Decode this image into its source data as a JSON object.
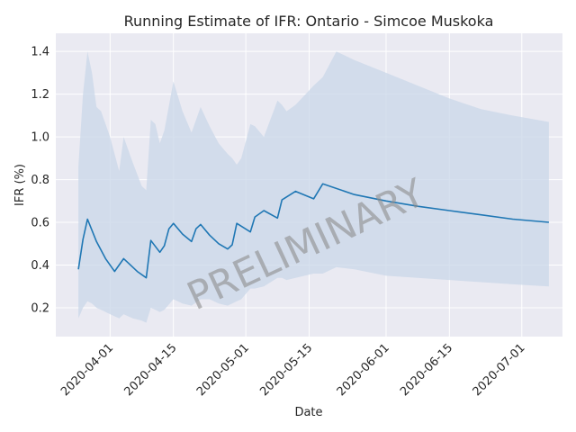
{
  "chart_data": {
    "type": "line",
    "title": "Running Estimate of IFR: Ontario - Simcoe Muskoka",
    "xlabel": "Date",
    "ylabel": "IFR (%)",
    "watermark": "PRELIMINARY",
    "grid": true,
    "x_is_date": true,
    "xlim": [
      "2020-03-20",
      "2020-07-10"
    ],
    "ylim": [
      0.065,
      1.485
    ],
    "xticks": [
      "2020-04-01",
      "2020-04-15",
      "2020-05-01",
      "2020-05-15",
      "2020-06-01",
      "2020-06-15",
      "2020-07-01"
    ],
    "yticks": [
      0.2,
      0.4,
      0.6,
      0.8,
      1.0,
      1.2,
      1.4
    ],
    "ytick_labels": [
      "0.2",
      "0.4",
      "0.6",
      "0.8",
      "1.0",
      "1.2",
      "1.4"
    ],
    "colors": {
      "line": "#1f77b4",
      "band": "#c9d7e8",
      "background": "#eaeaf2",
      "grid": "#ffffff",
      "watermark": "#8c8c8c"
    },
    "series": [
      {
        "x": [
          "2020-03-25",
          "2020-03-26",
          "2020-03-27",
          "2020-03-29",
          "2020-03-31",
          "2020-04-02",
          "2020-04-04",
          "2020-04-05",
          "2020-04-07",
          "2020-04-09",
          "2020-04-10",
          "2020-04-12",
          "2020-04-13",
          "2020-04-14",
          "2020-04-15",
          "2020-04-17",
          "2020-04-19",
          "2020-04-20",
          "2020-04-21",
          "2020-04-23",
          "2020-04-25",
          "2020-04-27",
          "2020-04-28",
          "2020-04-29",
          "2020-05-02",
          "2020-05-03",
          "2020-05-05",
          "2020-05-08",
          "2020-05-09",
          "2020-05-12",
          "2020-05-16",
          "2020-05-18",
          "2020-05-25",
          "2020-06-01",
          "2020-06-08",
          "2020-06-15",
          "2020-06-22",
          "2020-06-29",
          "2020-07-07"
        ],
        "y": [
          0.38,
          0.52,
          0.615,
          0.51,
          0.43,
          0.37,
          0.43,
          0.41,
          0.37,
          0.34,
          0.515,
          0.46,
          0.49,
          0.57,
          0.595,
          0.545,
          0.51,
          0.57,
          0.59,
          0.54,
          0.5,
          0.475,
          0.495,
          0.595,
          0.555,
          0.625,
          0.655,
          0.62,
          0.705,
          0.745,
          0.71,
          0.78,
          0.73,
          0.7,
          0.675,
          0.655,
          0.635,
          0.615,
          0.6
        ]
      }
    ],
    "band": {
      "x": [
        "2020-03-25",
        "2020-03-26",
        "2020-03-27",
        "2020-03-28",
        "2020-03-29",
        "2020-03-30",
        "2020-04-01",
        "2020-04-03",
        "2020-04-04",
        "2020-04-06",
        "2020-04-08",
        "2020-04-09",
        "2020-04-10",
        "2020-04-11",
        "2020-04-12",
        "2020-04-13",
        "2020-04-15",
        "2020-04-17",
        "2020-04-19",
        "2020-04-21",
        "2020-04-23",
        "2020-04-25",
        "2020-04-27",
        "2020-04-28",
        "2020-04-29",
        "2020-04-30",
        "2020-05-02",
        "2020-05-03",
        "2020-05-05",
        "2020-05-08",
        "2020-05-09",
        "2020-05-10",
        "2020-05-12",
        "2020-05-16",
        "2020-05-18",
        "2020-05-21",
        "2020-05-25",
        "2020-06-01",
        "2020-06-08",
        "2020-06-15",
        "2020-06-22",
        "2020-06-29",
        "2020-07-07"
      ],
      "upper": [
        0.86,
        1.2,
        1.4,
        1.3,
        1.14,
        1.12,
        1.0,
        0.84,
        1.0,
        0.88,
        0.77,
        0.75,
        1.08,
        1.06,
        0.97,
        1.03,
        1.26,
        1.12,
        1.02,
        1.14,
        1.05,
        0.97,
        0.92,
        0.9,
        0.87,
        0.9,
        1.06,
        1.05,
        1.0,
        1.17,
        1.15,
        1.12,
        1.15,
        1.24,
        1.28,
        1.4,
        1.36,
        1.3,
        1.24,
        1.18,
        1.13,
        1.1,
        1.07
      ],
      "lower": [
        0.15,
        0.2,
        0.23,
        0.22,
        0.2,
        0.19,
        0.17,
        0.15,
        0.17,
        0.15,
        0.14,
        0.13,
        0.2,
        0.19,
        0.18,
        0.19,
        0.24,
        0.22,
        0.21,
        0.24,
        0.24,
        0.22,
        0.21,
        0.22,
        0.23,
        0.24,
        0.29,
        0.29,
        0.3,
        0.34,
        0.34,
        0.33,
        0.34,
        0.36,
        0.36,
        0.39,
        0.38,
        0.35,
        0.34,
        0.33,
        0.32,
        0.31,
        0.3
      ]
    }
  }
}
